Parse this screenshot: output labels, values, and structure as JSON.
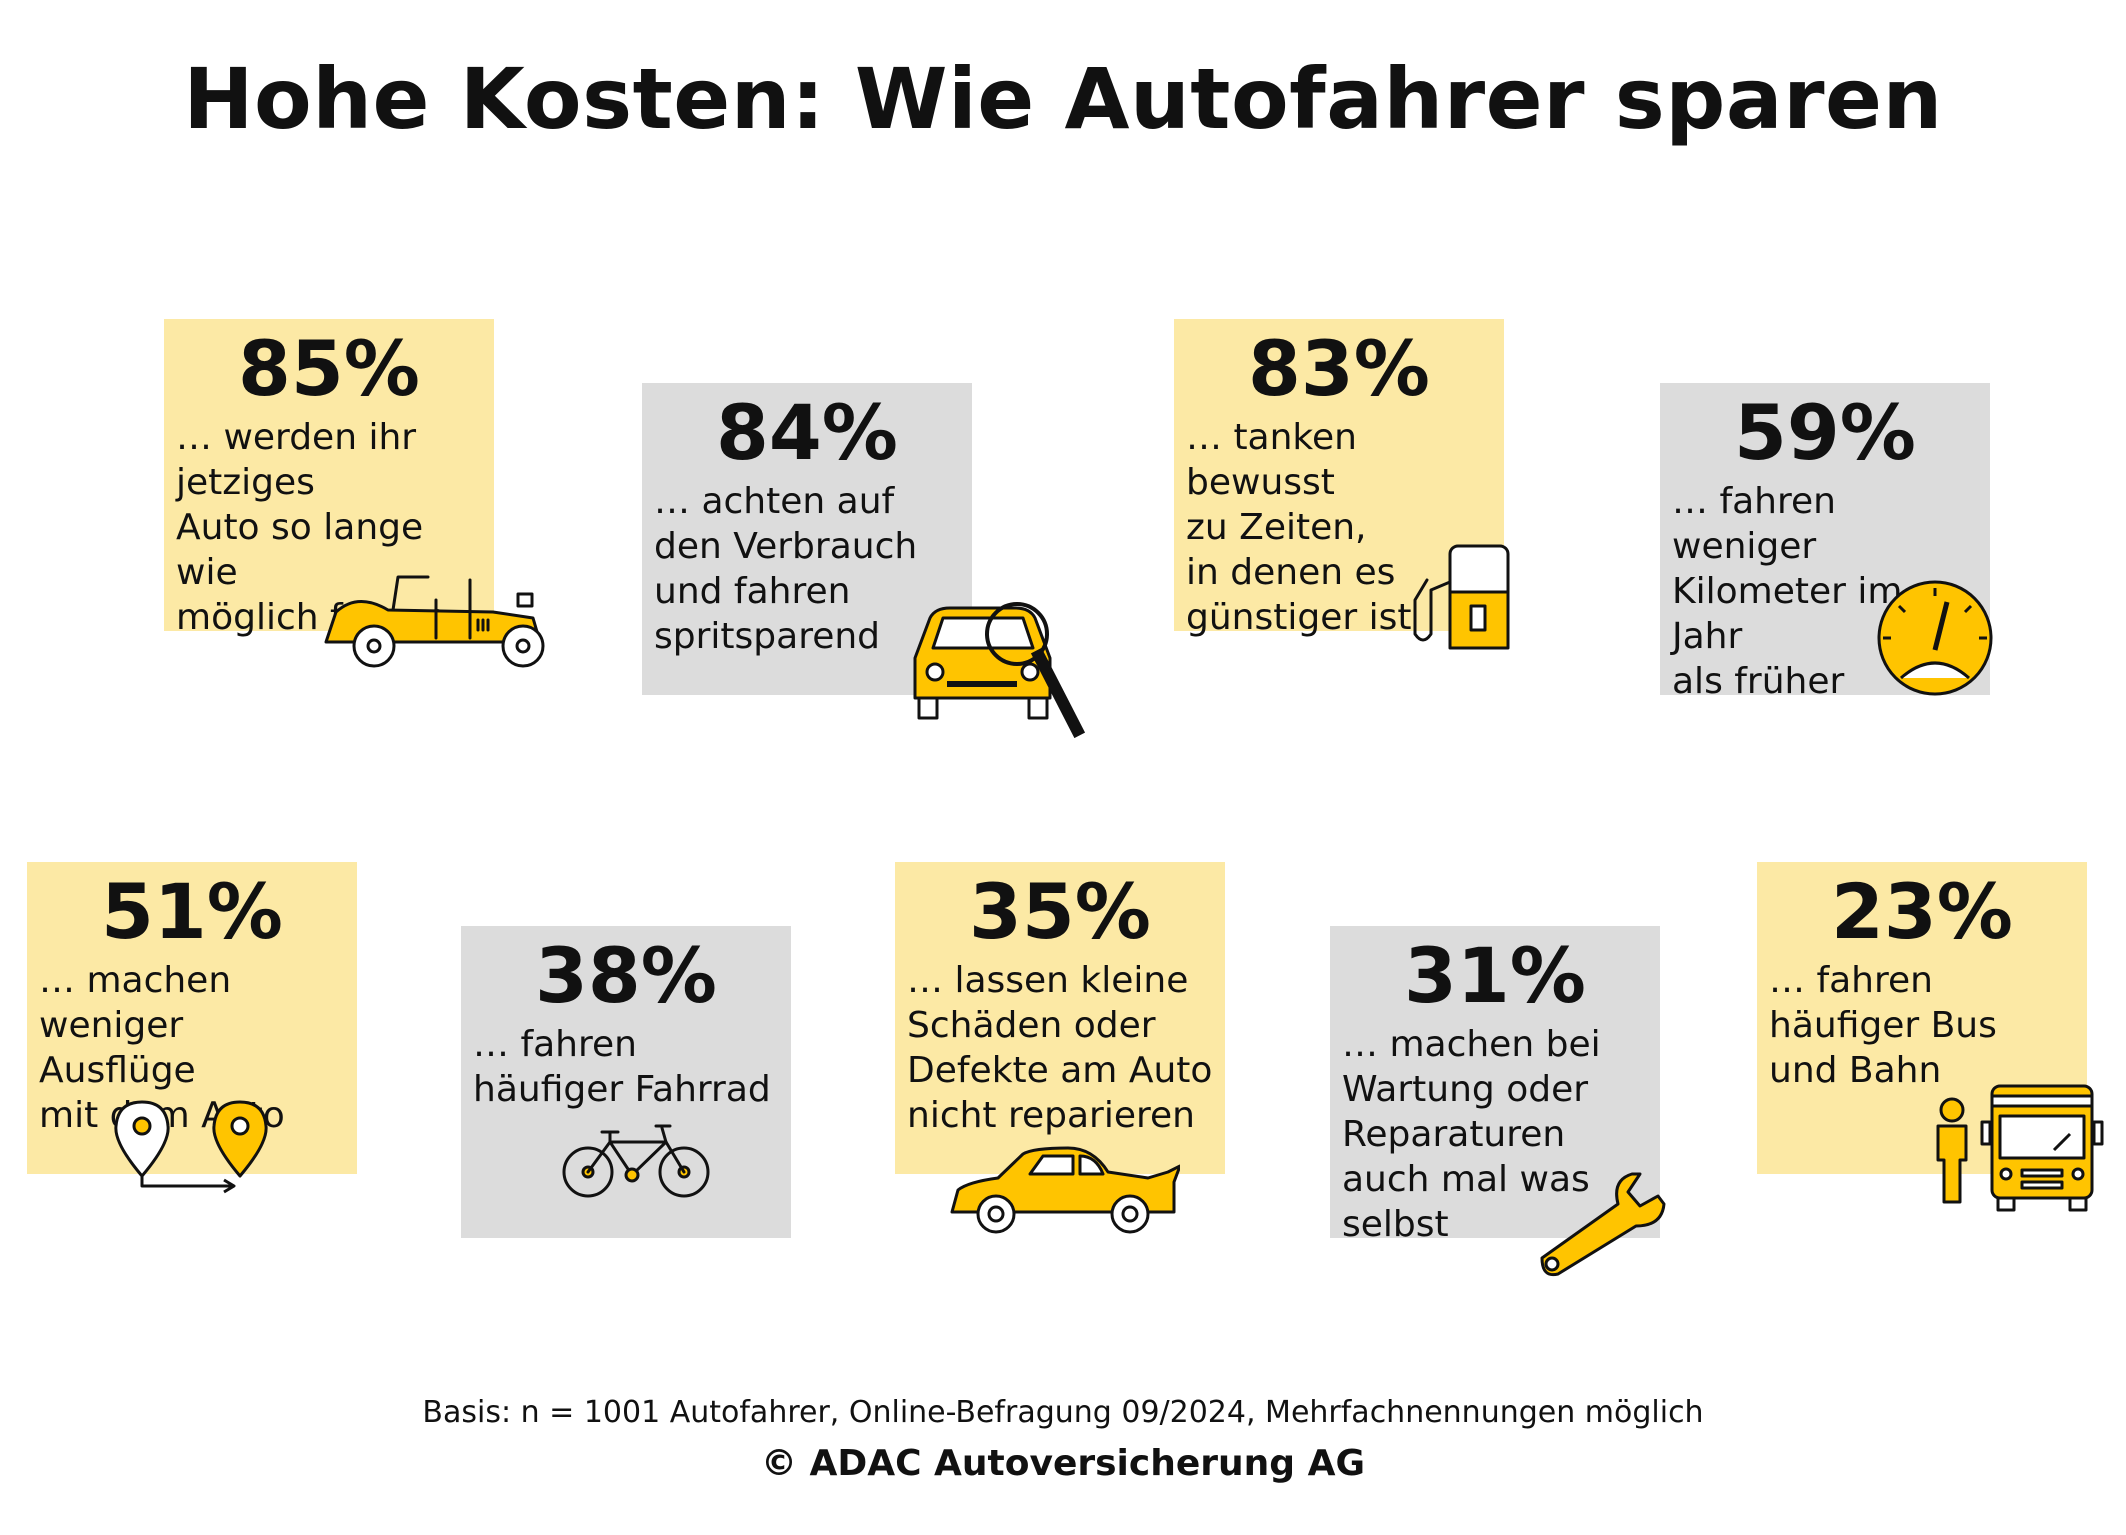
{
  "title": "Hohe Kosten: Wie Autofahrer sparen",
  "colors": {
    "yellow_card": "#fce9a5",
    "gray_card": "#dcdcdc",
    "accent": "#ffc400",
    "text": "#111111"
  },
  "stats": [
    {
      "value": "85%",
      "text": "… werden ihr\njetziges\nAuto so lange wie\nmöglich fahren",
      "icon": "vintage-car-icon"
    },
    {
      "value": "84%",
      "text": "… achten auf\nden Verbrauch\nund fahren\nspritsparend",
      "icon": "car-magnifier-icon"
    },
    {
      "value": "83%",
      "text": "… tanken bewusst\nzu Zeiten,\nin denen es\ngünstiger ist",
      "icon": "fuel-pump-icon"
    },
    {
      "value": "59%",
      "text": "… fahren weniger\nKilometer im Jahr\nals früher",
      "icon": "speedometer-icon"
    },
    {
      "value": "51%",
      "text": "… machen\nweniger Ausflüge\nmit dem Auto",
      "icon": "map-pins-icon"
    },
    {
      "value": "38%",
      "text": "… fahren\nhäufiger Fahrrad",
      "icon": "bicycle-icon"
    },
    {
      "value": "35%",
      "text": "… lassen kleine\nSchäden oder\nDefekte am Auto\nnicht reparieren",
      "icon": "car-open-hood-icon"
    },
    {
      "value": "31%",
      "text": "… machen bei\nWartung oder\nReparaturen\nauch mal was\nselbst",
      "icon": "wrench-icon"
    },
    {
      "value": "23%",
      "text": "… fahren\nhäufiger Bus\nund Bahn",
      "icon": "bus-passenger-icon"
    }
  ],
  "footer": {
    "basis": "Basis: n = 1001 Autofahrer, Online-Befragung 09/2024, Mehrfachnennungen möglich",
    "copyright": "© ADAC Autoversicherung AG"
  }
}
